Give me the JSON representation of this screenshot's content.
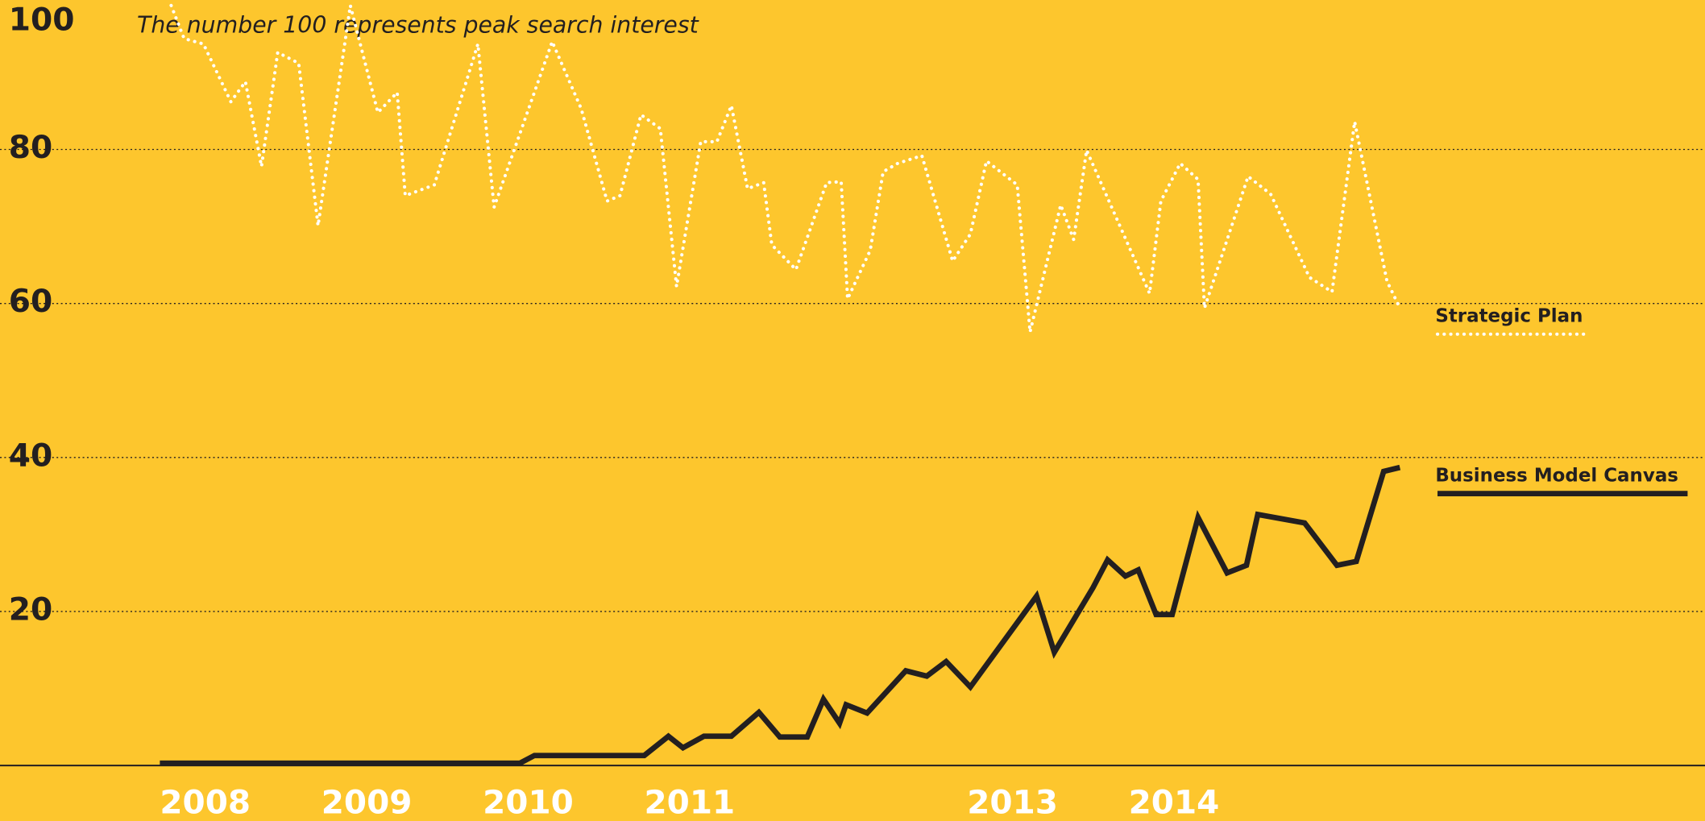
{
  "chart_data": {
    "type": "line",
    "annotation": "The number 100 represents peak search interest",
    "xlim": [
      2007.01,
      2017.57
    ],
    "xticks": [
      2008,
      2009,
      2010,
      2011,
      2013,
      2014
    ],
    "ylim": [
      -7.2,
      99.4
    ],
    "yticks": [
      20,
      40,
      60,
      80,
      100
    ],
    "grid": true,
    "legend": "right",
    "series": [
      {
        "name": "Strategic Plan",
        "color": "#ffffff",
        "style": "dotted",
        "x": [
          2008.07,
          2008.15,
          2008.27,
          2008.44,
          2008.53,
          2008.63,
          2008.73,
          2008.86,
          2008.98,
          2009.18,
          2009.35,
          2009.47,
          2009.52,
          2009.7,
          2009.97,
          2010.07,
          2010.43,
          2010.61,
          2010.77,
          2010.85,
          2010.98,
          2011.1,
          2011.2,
          2011.35,
          2011.45,
          2011.54,
          2011.64,
          2011.74,
          2011.79,
          2011.94,
          2012.13,
          2012.22,
          2012.26,
          2012.4,
          2012.48,
          2012.57,
          2012.72,
          2012.91,
          2013.02,
          2013.12,
          2013.31,
          2013.39,
          2013.58,
          2013.66,
          2013.74,
          2014.13,
          2014.2,
          2014.32,
          2014.43,
          2014.47,
          2014.74,
          2014.88,
          2015.12,
          2015.26,
          2015.4,
          2015.6,
          2015.68
        ],
        "values": [
          98.7,
          94.4,
          93.7,
          86.2,
          88.8,
          77.8,
          92.6,
          91.2,
          70.1,
          98.7,
          84.8,
          87.4,
          74.0,
          75.4,
          93.7,
          72.5,
          94.0,
          85.3,
          73.3,
          74.0,
          84.5,
          82.7,
          62.2,
          81.0,
          81.0,
          85.7,
          74.9,
          75.7,
          67.6,
          64.4,
          75.7,
          75.8,
          60.6,
          66.9,
          77.1,
          78.2,
          79.2,
          65.5,
          69.0,
          78.5,
          75.4,
          56.3,
          72.8,
          68.3,
          79.9,
          61.3,
          73.3,
          78.2,
          76.1,
          59.4,
          76.5,
          74.2,
          63.4,
          61.5,
          83.6,
          62.9,
          59.4
        ]
      },
      {
        "name": "Business Model Canvas",
        "color": "#231f20",
        "style": "solid",
        "x": [
          2008.0,
          2010.23,
          2010.32,
          2011.0,
          2011.15,
          2011.24,
          2011.37,
          2011.54,
          2011.71,
          2011.84,
          2012.01,
          2012.11,
          2012.21,
          2012.25,
          2012.38,
          2012.62,
          2012.75,
          2012.87,
          2013.02,
          2013.43,
          2013.54,
          2013.78,
          2013.87,
          2013.98,
          2014.06,
          2014.17,
          2014.27,
          2014.43,
          2014.61,
          2014.73,
          2014.8,
          2015.09,
          2015.29,
          2015.41,
          2015.58,
          2015.68
        ],
        "values": [
          0.3,
          0.3,
          1.3,
          1.3,
          3.8,
          2.3,
          3.8,
          3.8,
          6.9,
          3.7,
          3.7,
          8.6,
          5.5,
          7.9,
          6.8,
          12.3,
          11.6,
          13.5,
          10.2,
          22.0,
          14.7,
          23.1,
          26.7,
          24.6,
          25.4,
          19.6,
          19.6,
          32.2,
          25.0,
          26.0,
          32.6,
          31.5,
          26.0,
          26.5,
          38.2,
          38.7
        ]
      }
    ]
  }
}
